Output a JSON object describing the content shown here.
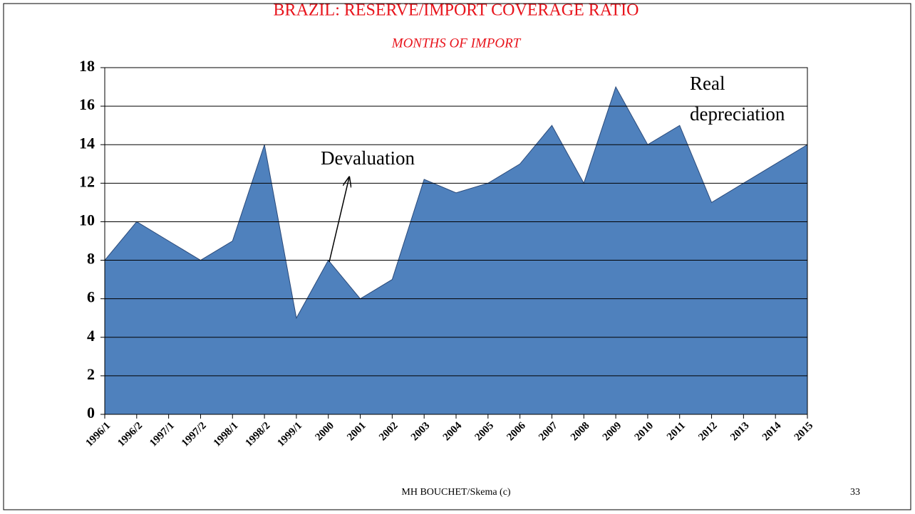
{
  "chart_data": {
    "type": "area",
    "title": "BRAZIL: RESERVE/IMPORT COVERAGE RATIO",
    "subtitle": "MONTHS OF IMPORT",
    "categories": [
      "1996/1",
      "1996/2",
      "1997/1",
      "1997/2",
      "1998/1",
      "1998/2",
      "1999/1",
      "2000",
      "2001",
      "2002",
      "2003",
      "2004",
      "2005",
      "2006",
      "2007",
      "2008",
      "2009",
      "2010",
      "2011",
      "2012",
      "2013",
      "2014",
      "2015"
    ],
    "values": [
      8,
      10,
      9,
      8,
      9,
      14,
      5,
      8,
      6,
      7,
      12.2,
      11.5,
      12,
      13,
      15,
      12,
      17,
      14,
      15,
      11,
      12,
      13,
      14
    ],
    "color": "#4f81bd",
    "ylim": [
      0,
      18
    ],
    "yticks": [
      0,
      2,
      4,
      6,
      8,
      10,
      12,
      14,
      16,
      18
    ],
    "grid": true,
    "annotations": [
      [
        "Devaluation"
      ],
      [
        "Real",
        "depreciation"
      ]
    ]
  },
  "slide": {
    "footer": "MH BOUCHET/Skema (c)",
    "page_number": "33"
  }
}
